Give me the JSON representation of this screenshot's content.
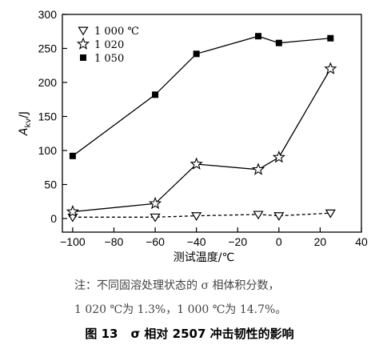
{
  "chart_data": {
    "type": "line",
    "x_tick_labels": [
      "−100",
      "−80",
      "−60",
      "−40",
      "−20",
      "0",
      "20",
      "40"
    ],
    "y_tick_labels": [
      "0",
      "50",
      "100",
      "150",
      "200",
      "250",
      "300"
    ],
    "xlim": [
      -105,
      40
    ],
    "ylim": [
      -20,
      300
    ],
    "xlabel": "测试温度/℃",
    "ylabel_main": "A",
    "ylabel_sub": "kv",
    "ylabel_unit": "/J",
    "legend_position": "top-left",
    "series": [
      {
        "name": "1 000 ℃",
        "marker": "triangle-down-open",
        "line": "dashed",
        "x": [
          -100,
          -60,
          -40,
          -10,
          0,
          25
        ],
        "y": [
          2,
          2,
          4,
          6,
          4,
          8
        ]
      },
      {
        "name": "1 020",
        "marker": "star-open",
        "line": "solid",
        "x": [
          -100,
          -60,
          -40,
          -10,
          0,
          25
        ],
        "y": [
          10,
          22,
          80,
          72,
          90,
          220
        ]
      },
      {
        "name": "1 050",
        "marker": "square-filled",
        "line": "solid",
        "x": [
          -100,
          -60,
          -40,
          -10,
          0,
          25
        ],
        "y": [
          92,
          182,
          242,
          268,
          258,
          265
        ]
      }
    ]
  },
  "note_line1": "注：不同固溶处理状态的 σ 相体积分数，",
  "note_line2": "1 020 ℃为 1.3%，1 000 ℃为 14.7%。",
  "caption_number": "图 13",
  "caption_text": "σ 相对 2507 冲击韧性的影响"
}
